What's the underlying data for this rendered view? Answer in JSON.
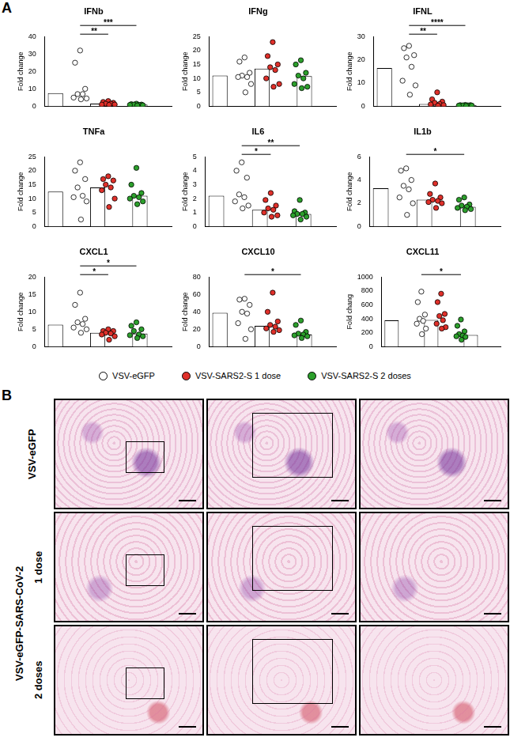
{
  "panel_labels": [
    "A",
    "B"
  ],
  "groups": [
    {
      "name": "VSV-eGFP",
      "color": "#ffffff"
    },
    {
      "name": "VSV-SARS2-S 1 dose",
      "color": "#e0302a"
    },
    {
      "name": "VSV-SARS2-S 2 doses",
      "color": "#2ca02c"
    }
  ],
  "chart_data": [
    {
      "type": "bar",
      "title": "IFNb",
      "ylabel": "Fold change",
      "categories": [
        null,
        null,
        null
      ],
      "values": [
        7.5,
        1.5,
        1
      ],
      "points": [
        [
          32,
          25,
          10,
          7,
          7,
          5,
          4.5,
          4
        ],
        [
          3,
          2.5,
          2,
          1.5,
          1.5,
          1,
          1,
          0.8
        ],
        [
          1.5,
          1.2,
          1,
          1,
          0.8,
          0.8,
          0.6,
          0.5
        ]
      ],
      "ylim": [
        0,
        40
      ],
      "yticks": [
        0,
        10,
        20,
        30,
        40
      ],
      "grid": false,
      "annotations": [
        {
          "from": 0,
          "to": 1,
          "label": "**"
        },
        {
          "from": 0,
          "to": 2,
          "label": "***"
        }
      ]
    },
    {
      "type": "bar",
      "title": "IFNg",
      "ylabel": "Fold change",
      "categories": [
        null,
        null,
        null
      ],
      "values": [
        11,
        13.5,
        10.8
      ],
      "points": [
        [
          17.5,
          16,
          12,
          11,
          10.5,
          10.5,
          8,
          5
        ],
        [
          23,
          18,
          15,
          14,
          13,
          10,
          8,
          7
        ],
        [
          16.5,
          15,
          12,
          11,
          10,
          8,
          7,
          6.5
        ]
      ],
      "ylim": [
        0,
        25
      ],
      "yticks": [
        0,
        5,
        10,
        15,
        20,
        25
      ],
      "grid": false,
      "annotations": []
    },
    {
      "type": "bar",
      "title": "IFNL",
      "ylabel": "Fold change",
      "categories": [
        null,
        null,
        null
      ],
      "values": [
        16.5,
        1,
        0.5
      ],
      "points": [
        [
          26,
          25,
          22,
          21,
          17,
          11,
          9,
          5
        ],
        [
          6,
          3,
          2,
          1.5,
          1,
          0.8,
          0.5,
          0.3
        ],
        [
          0.6,
          0.5,
          0.5,
          0.4,
          0.4,
          0.3,
          0.3,
          0.2
        ]
      ],
      "ylim": [
        0,
        30
      ],
      "yticks": [
        0,
        10,
        20,
        30
      ],
      "grid": false,
      "annotations": [
        {
          "from": 0,
          "to": 1,
          "label": "**"
        },
        {
          "from": 0,
          "to": 2,
          "label": "****"
        }
      ]
    },
    {
      "type": "bar",
      "title": "TNFa",
      "ylabel": "Fold change",
      "categories": [
        null,
        null,
        null
      ],
      "values": [
        12.5,
        14,
        11
      ],
      "points": [
        [
          23,
          20,
          17,
          14,
          11,
          10.5,
          9,
          2.5
        ],
        [
          18,
          17,
          16.5,
          15,
          14,
          13,
          10,
          7
        ],
        [
          21,
          15,
          12,
          11,
          10.5,
          10,
          9,
          8
        ]
      ],
      "ylim": [
        0,
        25
      ],
      "yticks": [
        0,
        5,
        10,
        15,
        20,
        25
      ],
      "grid": false,
      "annotations": []
    },
    {
      "type": "bar",
      "title": "IL6",
      "ylabel": "Fold change",
      "categories": [
        null,
        null,
        null
      ],
      "values": [
        2.2,
        1.2,
        0.9
      ],
      "points": [
        [
          4.6,
          4,
          3.5,
          2.3,
          2.1,
          1.8,
          1.5,
          1.3
        ],
        [
          2.4,
          1.9,
          1.5,
          1.3,
          1.2,
          1,
          0.8,
          0.7
        ],
        [
          1.9,
          1.1,
          1,
          0.9,
          0.9,
          0.8,
          0.7,
          0.5
        ]
      ],
      "ylim": [
        0,
        5
      ],
      "yticks": [
        0,
        1,
        2,
        3,
        4,
        5
      ],
      "grid": false,
      "annotations": [
        {
          "from": 0,
          "to": 1,
          "label": "*"
        },
        {
          "from": 0,
          "to": 2,
          "label": "**"
        }
      ]
    },
    {
      "type": "bar",
      "title": "IL1b",
      "ylabel": "Fold change",
      "categories": [
        null,
        null,
        null
      ],
      "values": [
        3.3,
        2.3,
        1.7
      ],
      "points": [
        [
          5,
          4.8,
          4,
          3.5,
          3.2,
          2.5,
          2,
          1
        ],
        [
          3.7,
          2.8,
          2.5,
          2.3,
          2.2,
          2.1,
          2,
          1.6
        ],
        [
          2.5,
          2.3,
          1.9,
          1.8,
          1.7,
          1.6,
          1.5,
          1.4
        ]
      ],
      "ylim": [
        0,
        6
      ],
      "yticks": [
        0,
        2,
        4,
        6
      ],
      "grid": false,
      "annotations": [
        {
          "from": 0,
          "to": 2,
          "label": "*"
        }
      ]
    },
    {
      "type": "bar",
      "title": "CXCL1",
      "ylabel": "Fold change",
      "categories": [
        null,
        null,
        null
      ],
      "values": [
        6.3,
        4,
        3.8
      ],
      "points": [
        [
          15.5,
          12,
          8,
          7,
          6.5,
          5.5,
          5,
          4
        ],
        [
          5,
          4.5,
          4.5,
          4,
          3.8,
          3.5,
          3,
          2
        ],
        [
          7,
          6,
          5,
          4.5,
          3.5,
          3.3,
          3,
          2.5
        ]
      ],
      "ylim": [
        0,
        20
      ],
      "yticks": [
        0,
        5,
        10,
        15,
        20
      ],
      "grid": false,
      "annotations": [
        {
          "from": 0,
          "to": 1,
          "label": "*"
        },
        {
          "from": 0,
          "to": 2,
          "label": "*"
        }
      ]
    },
    {
      "type": "bar",
      "title": "CXCL10",
      "ylabel": "Fold change",
      "categories": [
        null,
        null,
        null
      ],
      "values": [
        39,
        24,
        14
      ],
      "points": [
        [
          55,
          54,
          48,
          40,
          38,
          27,
          20,
          9
        ],
        [
          62,
          40,
          29,
          25,
          23,
          21,
          19,
          17
        ],
        [
          30,
          25,
          17,
          15,
          14,
          13,
          12,
          10
        ]
      ],
      "ylim": [
        0,
        80
      ],
      "yticks": [
        0,
        20,
        40,
        60,
        80
      ],
      "grid": false,
      "annotations": [
        {
          "from": 0,
          "to": 2,
          "label": "*"
        }
      ]
    },
    {
      "type": "bar",
      "title": "CXCL11",
      "ylabel": "Fold chang",
      "categories": [
        null,
        null,
        null
      ],
      "values": [
        380,
        385,
        170
      ],
      "points": [
        [
          790,
          640,
          460,
          400,
          370,
          330,
          260,
          180
        ],
        [
          760,
          640,
          470,
          440,
          380,
          330,
          280,
          260
        ],
        [
          390,
          300,
          220,
          180,
          160,
          150,
          140,
          100
        ]
      ],
      "ylim": [
        0,
        1000
      ],
      "yticks": [
        0,
        200,
        400,
        600,
        800,
        1000
      ],
      "grid": false,
      "annotations": [
        {
          "from": 0,
          "to": 2,
          "label": "*"
        }
      ]
    }
  ],
  "histology": {
    "rows": [
      {
        "group": "VSV-eGFP",
        "label": null
      },
      {
        "group": "VSV-eGFP-SARS-CoV-2",
        "label": "1 dose"
      },
      {
        "group": "VSV-eGFP-SARS-CoV-2",
        "label": "2 doses"
      }
    ]
  }
}
